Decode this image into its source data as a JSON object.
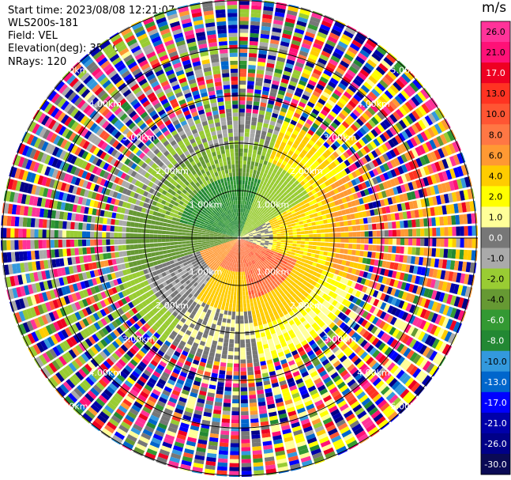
{
  "header": {
    "start_time": "Start time: 2023/08/08 12:21:07",
    "instrument": "WLS200s-181",
    "field": "Field: VEL",
    "elevation": "Elevation(deg): 35.30",
    "nrays": "NRays: 120"
  },
  "colorbar": {
    "unit": "m/s",
    "ticks": [
      "26.0",
      "21.0",
      "17.0",
      "13.0",
      "10.0",
      "8.0",
      "6.0",
      "4.0",
      "2.0",
      "1.0",
      "0.0",
      "-1.0",
      "-2.0",
      "-4.0",
      "-6.0",
      "-8.0",
      "-10.0",
      "-13.0",
      "-17.0",
      "-21.0",
      "-26.0",
      "-30.0"
    ],
    "colors": [
      "#ff3399",
      "#ff1177",
      "#ee0022",
      "#ff3322",
      "#ff5533",
      "#ff7744",
      "#ff9933",
      "#ffcc00",
      "#ffff00",
      "#ffff99",
      "#777777",
      "#aaaaaa",
      "#99cc33",
      "#669933",
      "#339933",
      "#228833",
      "#3399dd",
      "#0066cc",
      "#0000ff",
      "#0000aa",
      "#000088",
      "#0a0a55"
    ]
  },
  "chart_data": {
    "type": "heatmap",
    "projection": "polar PPI",
    "field": "VEL",
    "n_rays": 120,
    "range_rings_km": [
      1.0,
      2.0,
      3.0,
      4.0,
      5.0
    ],
    "ring_labels": [
      "1.00km",
      "2.00km",
      "3.00km",
      "4.00km",
      "5.00km"
    ],
    "colorbar_range": [
      -30.0,
      26.0
    ],
    "regions": [
      {
        "sector": "north-west inner",
        "range_km": [
          0,
          1.8
        ],
        "approx_value": -9.0
      },
      {
        "sector": "west",
        "range_km": [
          0,
          3.8
        ],
        "approx_value": -6.0
      },
      {
        "sector": "north-east inner",
        "range_km": [
          0,
          2.5
        ],
        "approx_value": -4.0
      },
      {
        "sector": "east",
        "range_km": [
          0,
          3.0
        ],
        "approx_value": 2.0
      },
      {
        "sector": "south-east",
        "range_km": [
          0,
          2.4
        ],
        "approx_value": 6.0
      },
      {
        "sector": "south",
        "range_km": [
          1.4,
          3.0
        ],
        "approx_value": 2.5
      },
      {
        "sector": "south-west",
        "range_km": [
          1.0,
          3.4
        ],
        "approx_value": -1.5
      },
      {
        "sector": "outer ring",
        "range_km": [
          3.6,
          7.2
        ],
        "approx_value": "noise"
      }
    ]
  }
}
